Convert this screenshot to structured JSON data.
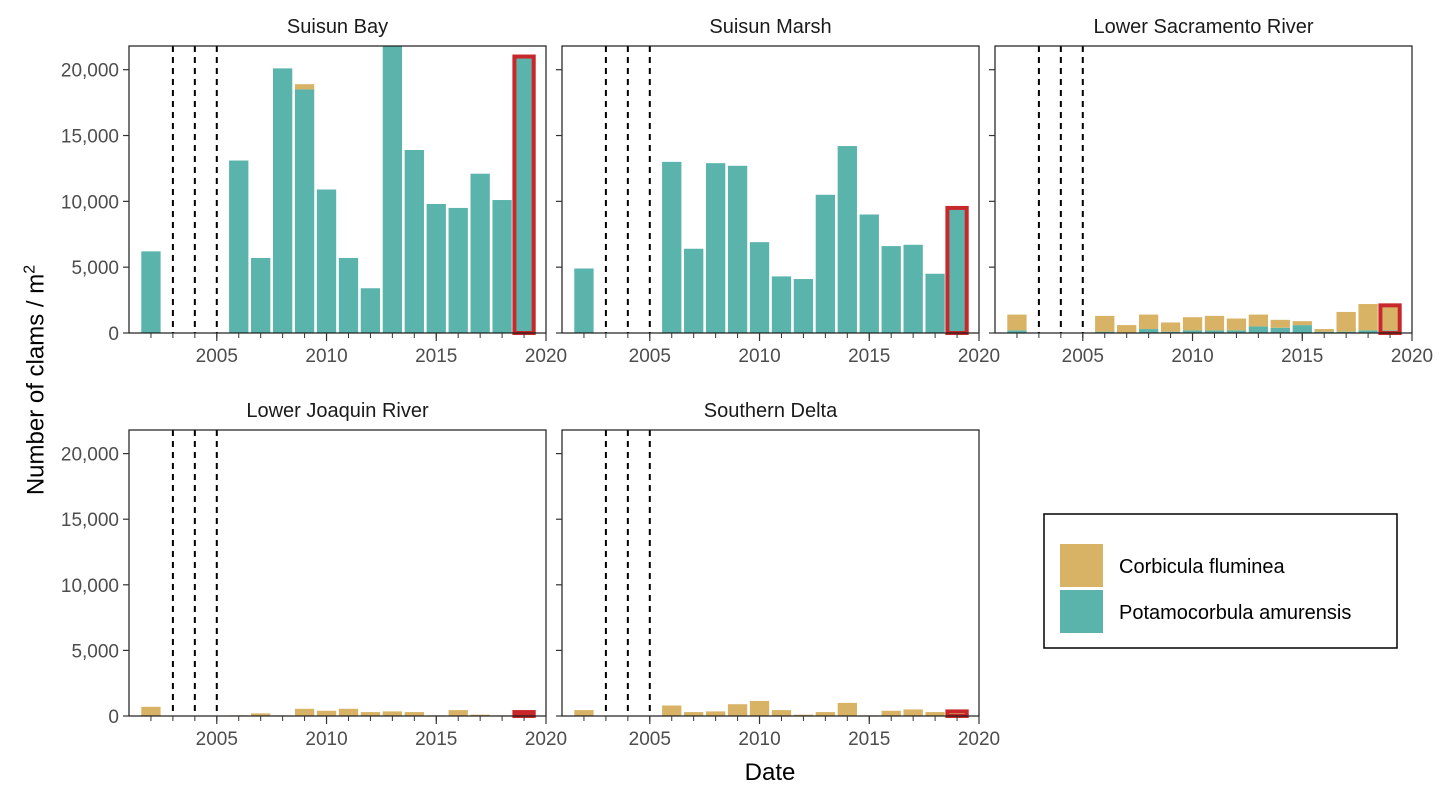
{
  "figure": {
    "xlabel": "Date",
    "ylabel_main": "Number of clams / m",
    "ylabel_sup": "2"
  },
  "colors": {
    "corbicula": "#D8B365",
    "potamocorbula": "#5AB4AC",
    "highlight": "#C8282A",
    "guide": "#000000"
  },
  "legend": {
    "items": [
      {
        "key": "corbicula",
        "label": "Corbicula fluminea"
      },
      {
        "key": "potamocorbula",
        "label": "Potamocorbula amurensis"
      }
    ]
  },
  "chart_data": {
    "type": "bar",
    "stacked": true,
    "xlim": [
      2001,
      2020
    ],
    "ylim": [
      0,
      21800
    ],
    "xticks": [
      2005,
      2010,
      2015,
      2020
    ],
    "xtick_labels": [
      "2005",
      "2010",
      "2015",
      "2020"
    ],
    "yticks": [
      0,
      5000,
      10000,
      15000,
      20000
    ],
    "ytick_labels": [
      "0",
      "5,000",
      "10,000",
      "15,000",
      "20,000"
    ],
    "dashed_vlines": [
      2003,
      2004,
      2005
    ],
    "highlight_year": 2019,
    "years": [
      2002,
      2003,
      2004,
      2005,
      2006,
      2007,
      2008,
      2009,
      2010,
      2011,
      2012,
      2013,
      2014,
      2015,
      2016,
      2017,
      2018,
      2019
    ],
    "panels": [
      {
        "title": "Suisun Bay",
        "potamocorbula": [
          6200,
          0,
          0,
          0,
          13100,
          5700,
          20100,
          18500,
          10900,
          5700,
          3400,
          21800,
          13900,
          9800,
          9500,
          12100,
          10100,
          21000
        ],
        "corbicula": [
          0,
          0,
          0,
          0,
          0,
          0,
          0,
          400,
          0,
          0,
          0,
          0,
          0,
          0,
          0,
          0,
          0,
          0
        ]
      },
      {
        "title": "Suisun Marsh",
        "potamocorbula": [
          4900,
          0,
          0,
          0,
          13000,
          6400,
          12900,
          12700,
          6900,
          4300,
          4100,
          10500,
          14200,
          9000,
          6600,
          6700,
          4500,
          9500
        ],
        "corbicula": [
          0,
          0,
          0,
          0,
          0,
          0,
          0,
          0,
          0,
          0,
          0,
          0,
          0,
          0,
          0,
          0,
          0,
          0
        ]
      },
      {
        "title": "Lower Sacramento River",
        "potamocorbula": [
          200,
          0,
          0,
          0,
          100,
          0,
          300,
          100,
          200,
          200,
          200,
          500,
          400,
          600,
          100,
          100,
          200,
          200
        ],
        "corbicula": [
          1200,
          0,
          0,
          0,
          1200,
          600,
          1100,
          700,
          1000,
          1100,
          900,
          900,
          600,
          300,
          200,
          1500,
          2000,
          1900
        ]
      },
      {
        "title": "Lower Joaquin River",
        "potamocorbula": [
          0,
          0,
          0,
          0,
          0,
          0,
          0,
          0,
          0,
          0,
          0,
          0,
          0,
          0,
          0,
          0,
          0,
          0
        ],
        "corbicula": [
          700,
          0,
          0,
          0,
          50,
          200,
          50,
          550,
          400,
          550,
          300,
          350,
          300,
          50,
          450,
          100,
          50,
          300
        ]
      },
      {
        "title": "Southern Delta",
        "potamocorbula": [
          0,
          0,
          0,
          0,
          0,
          0,
          0,
          0,
          0,
          0,
          0,
          0,
          0,
          0,
          0,
          0,
          0,
          0
        ],
        "corbicula": [
          450,
          0,
          0,
          0,
          800,
          300,
          350,
          900,
          1150,
          450,
          100,
          300,
          1000,
          50,
          400,
          500,
          300,
          350
        ]
      }
    ]
  }
}
